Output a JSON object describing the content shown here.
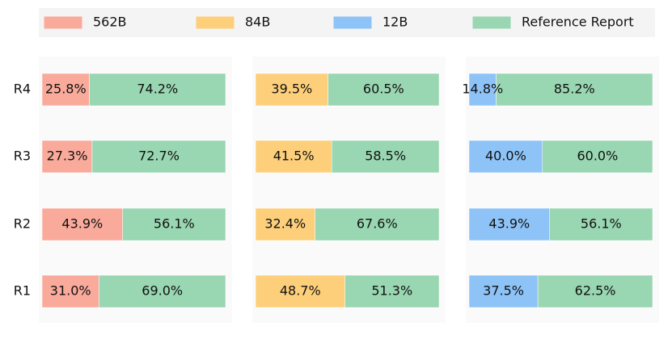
{
  "chart_data": {
    "type": "bar",
    "orientation": "horizontal",
    "stacked": true,
    "xlim": [
      0,
      100
    ],
    "categories": [
      "R4",
      "R3",
      "R2",
      "R1"
    ],
    "series": [
      {
        "name": "562B",
        "color": "#f9aa9b"
      },
      {
        "name": "84B",
        "color": "#fdcf7b"
      },
      {
        "name": "12B",
        "color": "#8ec3f7"
      },
      {
        "name": "Reference Report",
        "color": "#99d6b2"
      }
    ],
    "panels": [
      {
        "values": [
          25.8,
          27.3,
          43.9,
          31.0
        ],
        "value_labels": [
          "25.8%",
          "27.3%",
          "43.9%",
          "31.0%"
        ],
        "reference_values": [
          74.2,
          72.7,
          56.1,
          69.0
        ],
        "reference_value_labels": [
          "74.2%",
          "72.7%",
          "56.1%",
          "69.0%"
        ]
      },
      {
        "values": [
          39.5,
          41.5,
          32.4,
          48.7
        ],
        "value_labels": [
          "39.5%",
          "41.5%",
          "32.4%",
          "48.7%"
        ],
        "reference_values": [
          60.5,
          58.5,
          67.6,
          51.3
        ],
        "reference_value_labels": [
          "60.5%",
          "58.5%",
          "67.6%",
          "51.3%"
        ]
      },
      {
        "values": [
          14.8,
          40.0,
          43.9,
          37.5
        ],
        "value_labels": [
          "14.8%",
          "40.0%",
          "43.9%",
          "37.5%"
        ],
        "reference_values": [
          85.2,
          60.0,
          56.1,
          62.5
        ],
        "reference_value_labels": [
          "85.2%",
          "60.0%",
          "56.1%",
          "62.5%"
        ]
      }
    ]
  }
}
